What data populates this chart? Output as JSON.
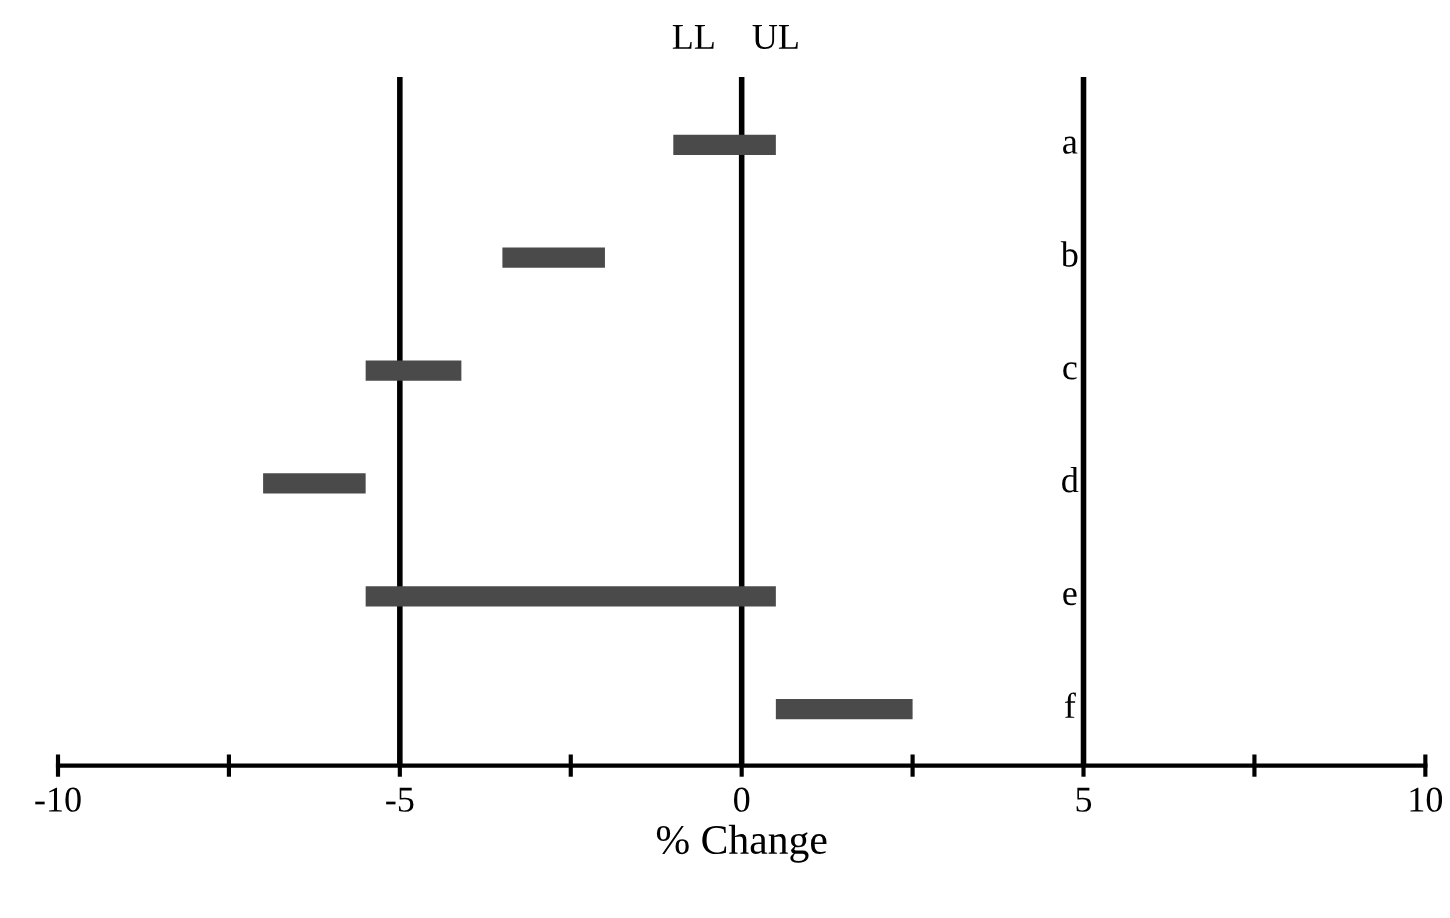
{
  "chart_data": {
    "type": "bar",
    "orientation": "horizontal",
    "xlabel": "% Change",
    "categories": [
      "a",
      "b",
      "c",
      "d",
      "e",
      "f"
    ],
    "base": [
      -1,
      -3.5,
      -5.5,
      -7,
      -5.5,
      0.5
    ],
    "values": [
      1.5,
      1.5,
      1.4,
      1.5,
      6,
      2
    ],
    "color": "#4a4a4a",
    "xlim": [
      -10,
      10
    ],
    "xticks": [
      -10,
      {
        "value": -7.5,
        "label": null
      },
      -5,
      {
        "value": -2.5,
        "label": null
      },
      0,
      {
        "value": 2.5,
        "label": null
      },
      5,
      {
        "value": 7.5,
        "label": null
      },
      10
    ],
    "ref_lines": [
      {
        "axis": "x",
        "value": -5,
        "label": null,
        "color": "#000000"
      },
      {
        "axis": "x",
        "value": 0,
        "label": null,
        "color": "#000000"
      },
      {
        "axis": "x",
        "value": 5,
        "label": null,
        "color": "#000000"
      }
    ],
    "annotations": [
      "LL",
      "UL"
    ],
    "grid": false,
    "legend": false
  }
}
